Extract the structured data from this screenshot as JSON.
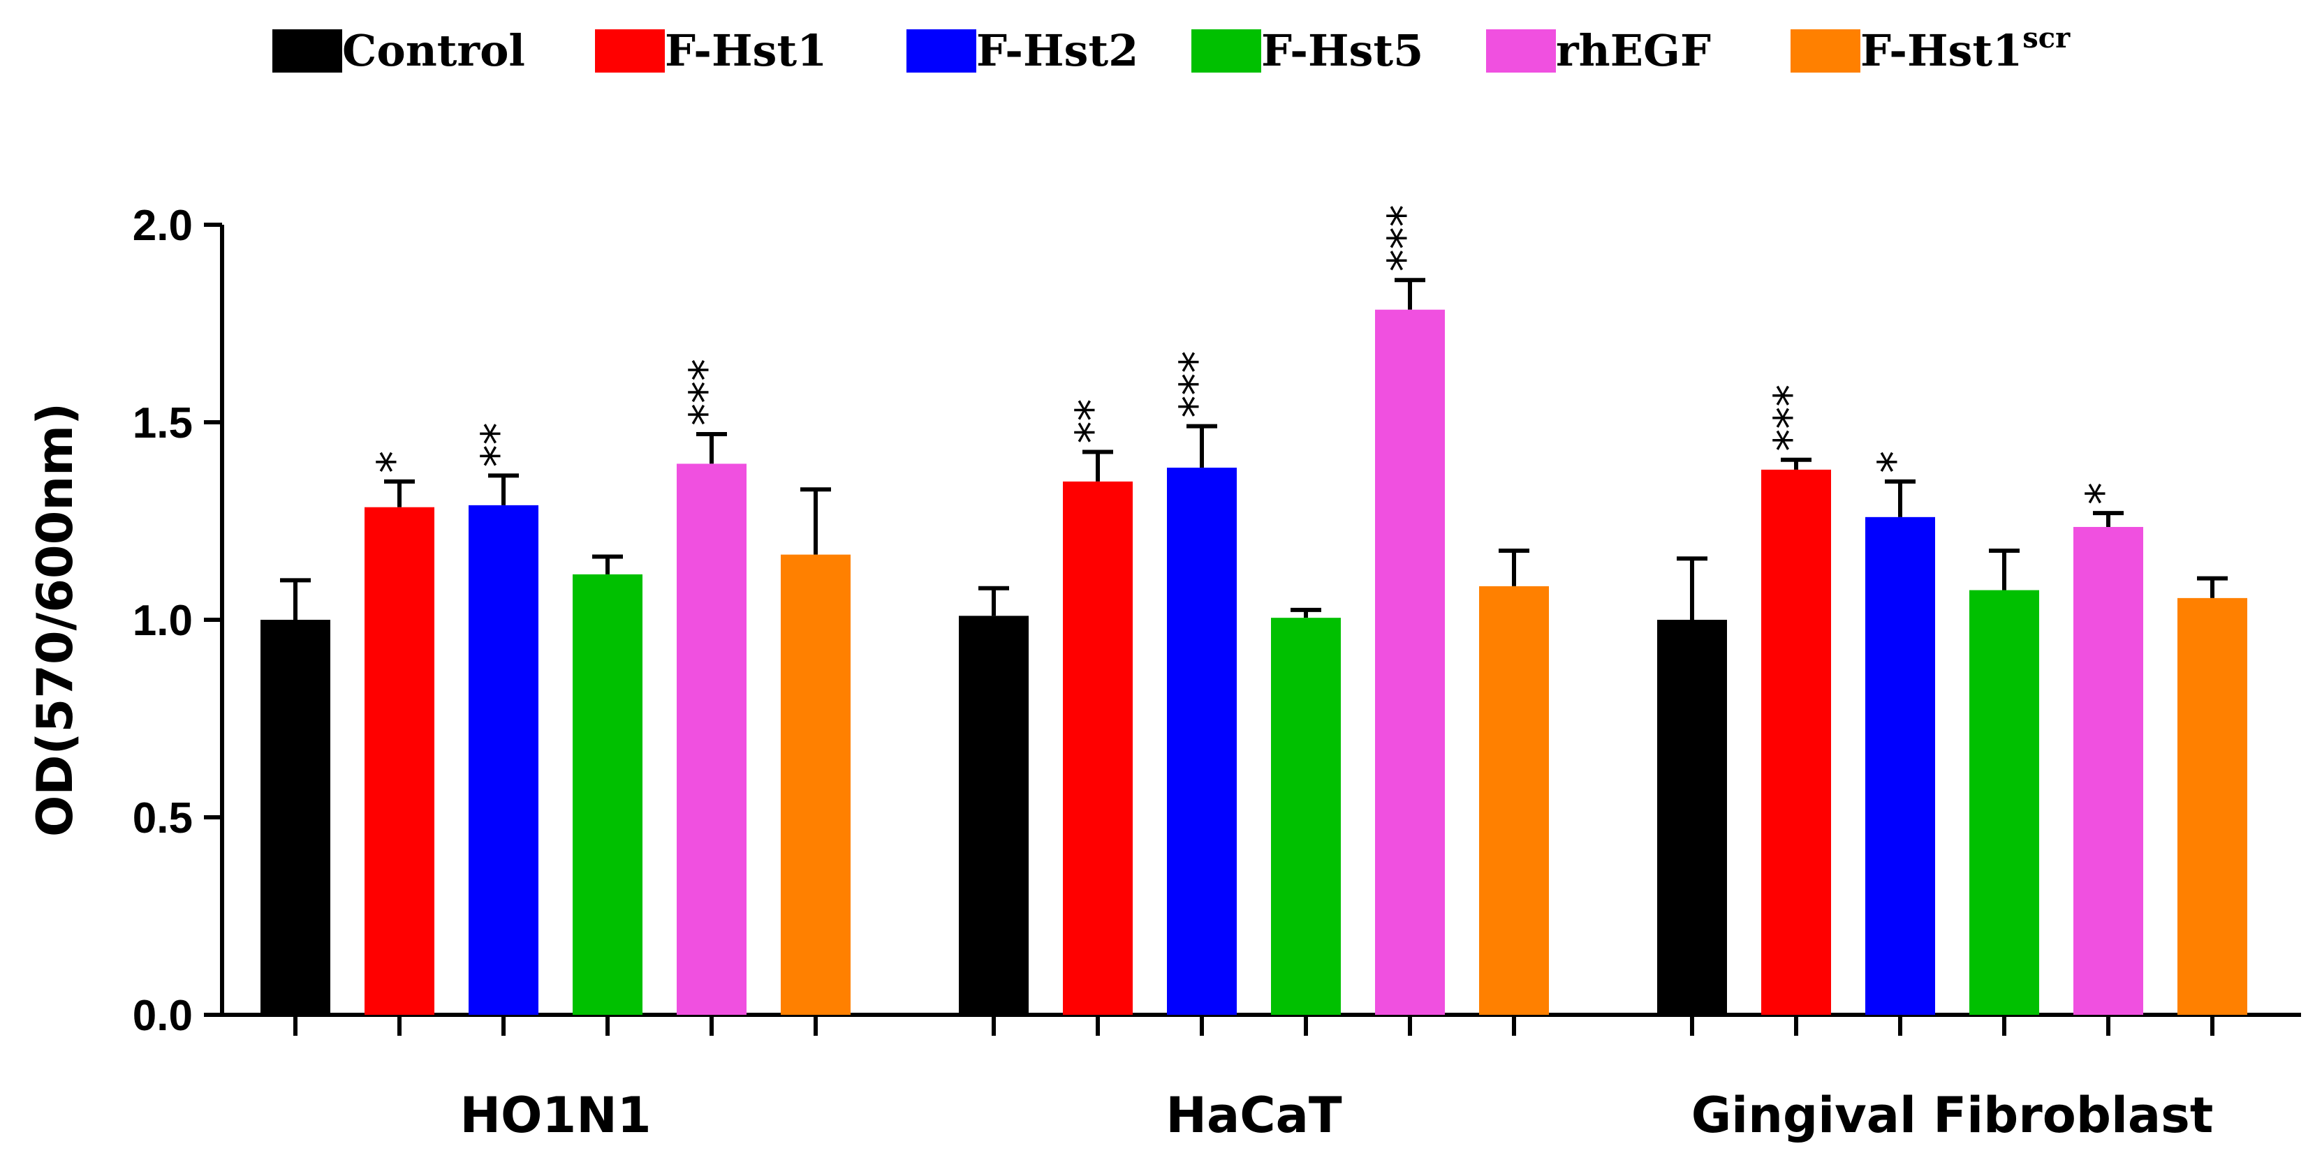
{
  "chart_data": {
    "type": "bar",
    "title": "",
    "xlabel": "",
    "ylabel": "OD(570/600nm)",
    "ylim": [
      0,
      2.0
    ],
    "yticks": [
      "0.0",
      "0.5",
      "1.0",
      "1.5",
      "2.0"
    ],
    "categories": [
      "HO1N1",
      "HaCaT",
      "Gingival Fibroblast"
    ],
    "legend_position": "top",
    "series": [
      {
        "name": "Control",
        "legend_label": "Control",
        "color": "#000000",
        "values": [
          1.0,
          1.01,
          1.0
        ],
        "errors": [
          0.1,
          0.07,
          0.155
        ],
        "significance": [
          "",
          "",
          ""
        ]
      },
      {
        "name": "F-Hst1",
        "legend_label": "F-Hst1",
        "color": "#ff0000",
        "values": [
          1.285,
          1.35,
          1.38
        ],
        "errors": [
          0.065,
          0.075,
          0.025
        ],
        "significance": [
          "*",
          "**",
          "***"
        ]
      },
      {
        "name": "F-Hst2",
        "legend_label": "F-Hst2",
        "color": "#0000ff",
        "values": [
          1.29,
          1.385,
          1.26
        ],
        "errors": [
          0.075,
          0.105,
          0.09
        ],
        "significance": [
          "**",
          "***",
          "*"
        ]
      },
      {
        "name": "F-Hst5",
        "legend_label": "F-Hst5",
        "color": "#00c000",
        "values": [
          1.115,
          1.005,
          1.075
        ],
        "errors": [
          0.045,
          0.02,
          0.1
        ],
        "significance": [
          "",
          "",
          ""
        ]
      },
      {
        "name": "rhEGF",
        "legend_label": "rhEGF",
        "color": "#f050e0",
        "values": [
          1.395,
          1.785,
          1.235
        ],
        "errors": [
          0.075,
          0.075,
          0.035
        ],
        "significance": [
          "***",
          "***",
          "*"
        ]
      },
      {
        "name": "F-Hst1scr",
        "legend_label": "F-Hst1",
        "legend_sup": "scr",
        "color": "#ff8000",
        "values": [
          1.165,
          1.085,
          1.055
        ],
        "errors": [
          0.165,
          0.09,
          0.05
        ],
        "significance": [
          "",
          "",
          ""
        ]
      }
    ]
  }
}
